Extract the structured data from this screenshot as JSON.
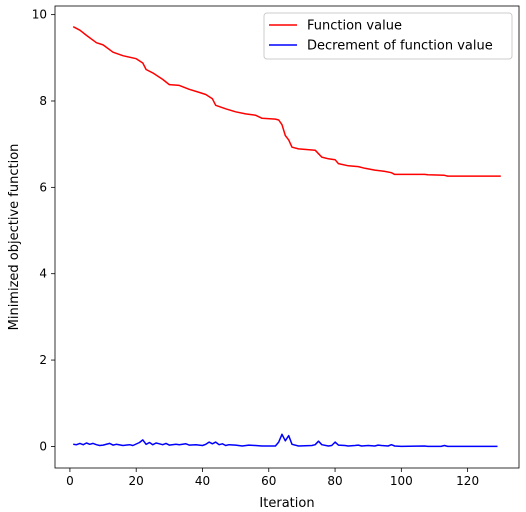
{
  "chart_data": {
    "type": "line",
    "title": "",
    "xlabel": "Iteration",
    "ylabel": "Minimized objective function",
    "xlim": [
      -4.5,
      135.5
    ],
    "ylim": [
      -0.5,
      10.2
    ],
    "xticks": [
      0,
      20,
      40,
      60,
      80,
      100,
      120
    ],
    "yticks": [
      0,
      2,
      4,
      6,
      8,
      10
    ],
    "legend_position": "top-right",
    "grid": false,
    "series": [
      {
        "name": "Function value",
        "color": "#ff0000",
        "points": [
          [
            1,
            9.72
          ],
          [
            3,
            9.64
          ],
          [
            5,
            9.52
          ],
          [
            8,
            9.35
          ],
          [
            10,
            9.3
          ],
          [
            13,
            9.13
          ],
          [
            16,
            9.05
          ],
          [
            20,
            8.98
          ],
          [
            22,
            8.88
          ],
          [
            23,
            8.73
          ],
          [
            25,
            8.65
          ],
          [
            28,
            8.5
          ],
          [
            30,
            8.38
          ],
          [
            33,
            8.36
          ],
          [
            36,
            8.27
          ],
          [
            39,
            8.2
          ],
          [
            41,
            8.15
          ],
          [
            43,
            8.05
          ],
          [
            44,
            7.9
          ],
          [
            47,
            7.82
          ],
          [
            50,
            7.75
          ],
          [
            53,
            7.7
          ],
          [
            56,
            7.67
          ],
          [
            58,
            7.6
          ],
          [
            62,
            7.58
          ],
          [
            63,
            7.56
          ],
          [
            64,
            7.45
          ],
          [
            65,
            7.2
          ],
          [
            66,
            7.1
          ],
          [
            67,
            6.93
          ],
          [
            69,
            6.89
          ],
          [
            74,
            6.86
          ],
          [
            75,
            6.78
          ],
          [
            76,
            6.7
          ],
          [
            78,
            6.66
          ],
          [
            80,
            6.64
          ],
          [
            81,
            6.55
          ],
          [
            84,
            6.5
          ],
          [
            87,
            6.48
          ],
          [
            89,
            6.44
          ],
          [
            92,
            6.4
          ],
          [
            95,
            6.37
          ],
          [
            97,
            6.34
          ],
          [
            98,
            6.3
          ],
          [
            107,
            6.3
          ],
          [
            108,
            6.29
          ],
          [
            113,
            6.28
          ],
          [
            114,
            6.26
          ],
          [
            130,
            6.26
          ]
        ]
      },
      {
        "name": "Decrement of function value",
        "color": "#0000ff",
        "points": [
          [
            1,
            0.05
          ],
          [
            2,
            0.04
          ],
          [
            3,
            0.07
          ],
          [
            4,
            0.04
          ],
          [
            5,
            0.08
          ],
          [
            6,
            0.05
          ],
          [
            7,
            0.07
          ],
          [
            8,
            0.04
          ],
          [
            9,
            0.02
          ],
          [
            10,
            0.03
          ],
          [
            12,
            0.07
          ],
          [
            13,
            0.03
          ],
          [
            14,
            0.05
          ],
          [
            16,
            0.02
          ],
          [
            18,
            0.04
          ],
          [
            19,
            0.02
          ],
          [
            21,
            0.09
          ],
          [
            22,
            0.15
          ],
          [
            23,
            0.05
          ],
          [
            24,
            0.09
          ],
          [
            25,
            0.04
          ],
          [
            26,
            0.08
          ],
          [
            27,
            0.06
          ],
          [
            28,
            0.04
          ],
          [
            29,
            0.07
          ],
          [
            30,
            0.03
          ],
          [
            32,
            0.05
          ],
          [
            33,
            0.04
          ],
          [
            35,
            0.06
          ],
          [
            36,
            0.03
          ],
          [
            38,
            0.04
          ],
          [
            40,
            0.02
          ],
          [
            41,
            0.05
          ],
          [
            42,
            0.1
          ],
          [
            43,
            0.06
          ],
          [
            44,
            0.1
          ],
          [
            45,
            0.04
          ],
          [
            46,
            0.06
          ],
          [
            47,
            0.02
          ],
          [
            48,
            0.04
          ],
          [
            50,
            0.03
          ],
          [
            52,
            0.01
          ],
          [
            54,
            0.03
          ],
          [
            56,
            0.02
          ],
          [
            58,
            0.01
          ],
          [
            62,
            0.01
          ],
          [
            63,
            0.1
          ],
          [
            64,
            0.28
          ],
          [
            65,
            0.13
          ],
          [
            66,
            0.25
          ],
          [
            67,
            0.05
          ],
          [
            69,
            0.01
          ],
          [
            73,
            0.02
          ],
          [
            74,
            0.04
          ],
          [
            75,
            0.12
          ],
          [
            76,
            0.04
          ],
          [
            78,
            0.01
          ],
          [
            79,
            0.02
          ],
          [
            80,
            0.1
          ],
          [
            81,
            0.03
          ],
          [
            83,
            0.02
          ],
          [
            84,
            0.01
          ],
          [
            86,
            0.02
          ],
          [
            87,
            0.03
          ],
          [
            88,
            0.01
          ],
          [
            90,
            0.02
          ],
          [
            92,
            0.01
          ],
          [
            93,
            0.03
          ],
          [
            94,
            0.02
          ],
          [
            96,
            0.01
          ],
          [
            97,
            0.04
          ],
          [
            98,
            0.01
          ],
          [
            100,
            0.0
          ],
          [
            107,
            0.01
          ],
          [
            108,
            0.0
          ],
          [
            112,
            0.0
          ],
          [
            113,
            0.02
          ],
          [
            114,
            0.0
          ],
          [
            129,
            0.0
          ]
        ]
      }
    ]
  }
}
